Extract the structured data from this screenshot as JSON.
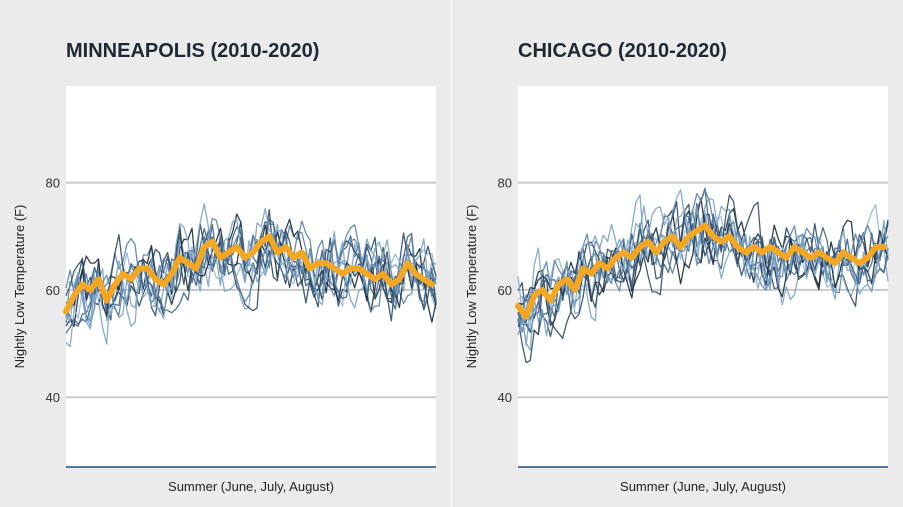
{
  "colors": {
    "background": "#ebebeb",
    "plot_background": "#ffffff",
    "gridline": "#c8c8c8",
    "axis_line": "#1f4e79",
    "mean_line": "#f4a722",
    "series_palette": [
      "#1b2a3a",
      "#2d4a66",
      "#3e6285",
      "#5a82a8",
      "#7aa3c6",
      "#93b8d8"
    ]
  },
  "chart_data": [
    {
      "type": "line",
      "title": "MINNEAPOLIS (2010-2020)",
      "xlabel": "Summer (June, July, August)",
      "ylabel": "Nightly Low Temperature (F)",
      "ylim": [
        27,
        98
      ],
      "yticks": [
        40,
        60,
        80
      ],
      "grid": "horizontal",
      "series_count": 11,
      "x_days": 92,
      "mean_series": {
        "x": [
          1,
          3,
          5,
          7,
          9,
          11,
          13,
          15,
          17,
          19,
          21,
          23,
          25,
          27,
          29,
          31,
          33,
          35,
          37,
          39,
          41,
          43,
          45,
          47,
          49,
          51,
          53,
          55,
          57,
          59,
          61,
          63,
          65,
          67,
          69,
          71,
          73,
          75,
          77,
          79,
          81,
          83,
          85,
          87,
          89,
          91
        ],
        "values": [
          56,
          59,
          61,
          60,
          62,
          58,
          61,
          63,
          62,
          64,
          64,
          62,
          61,
          63,
          66,
          65,
          64,
          68,
          69,
          66,
          67,
          68,
          66,
          67,
          69,
          70,
          67,
          68,
          66,
          67,
          64,
          65,
          65,
          64,
          63,
          64,
          64,
          63,
          62,
          63,
          61,
          62,
          65,
          63,
          62,
          61
        ]
      },
      "annual_series": [
        {
          "seed": 11,
          "spread": 7
        },
        {
          "seed": 23,
          "spread": 8
        },
        {
          "seed": 37,
          "spread": 6
        },
        {
          "seed": 41,
          "spread": 7
        },
        {
          "seed": 53,
          "spread": 9
        },
        {
          "seed": 67,
          "spread": 6
        },
        {
          "seed": 71,
          "spread": 7
        },
        {
          "seed": 83,
          "spread": 8
        },
        {
          "seed": 97,
          "spread": 6
        },
        {
          "seed": 101,
          "spread": 7
        },
        {
          "seed": 113,
          "spread": 8
        }
      ]
    },
    {
      "type": "line",
      "title": "CHICAGO (2010-2020)",
      "xlabel": "Summer (June, July, August)",
      "ylabel": "Nightly Low Temperature (F)",
      "ylim": [
        27,
        98
      ],
      "yticks": [
        40,
        60,
        80
      ],
      "grid": "horizontal",
      "series_count": 11,
      "x_days": 92,
      "mean_series": {
        "x": [
          1,
          3,
          5,
          7,
          9,
          11,
          13,
          15,
          17,
          19,
          21,
          23,
          25,
          27,
          29,
          31,
          33,
          35,
          37,
          39,
          41,
          43,
          45,
          47,
          49,
          51,
          53,
          55,
          57,
          59,
          61,
          63,
          65,
          67,
          69,
          71,
          73,
          75,
          77,
          79,
          81,
          83,
          85,
          87,
          89,
          91
        ],
        "values": [
          57,
          55,
          59,
          60,
          58,
          61,
          62,
          60,
          64,
          63,
          65,
          64,
          66,
          67,
          66,
          68,
          69,
          67,
          69,
          70,
          68,
          70,
          71,
          72,
          70,
          69,
          70,
          68,
          67,
          68,
          67,
          68,
          67,
          66,
          68,
          67,
          66,
          67,
          66,
          65,
          67,
          66,
          65,
          66,
          68,
          68
        ]
      },
      "annual_series": [
        {
          "seed": 131,
          "spread": 7
        },
        {
          "seed": 149,
          "spread": 8
        },
        {
          "seed": 157,
          "spread": 6
        },
        {
          "seed": 167,
          "spread": 7
        },
        {
          "seed": 173,
          "spread": 9
        },
        {
          "seed": 181,
          "spread": 6
        },
        {
          "seed": 191,
          "spread": 7
        },
        {
          "seed": 199,
          "spread": 8
        },
        {
          "seed": 211,
          "spread": 6
        },
        {
          "seed": 223,
          "spread": 7
        },
        {
          "seed": 229,
          "spread": 8
        }
      ]
    }
  ]
}
